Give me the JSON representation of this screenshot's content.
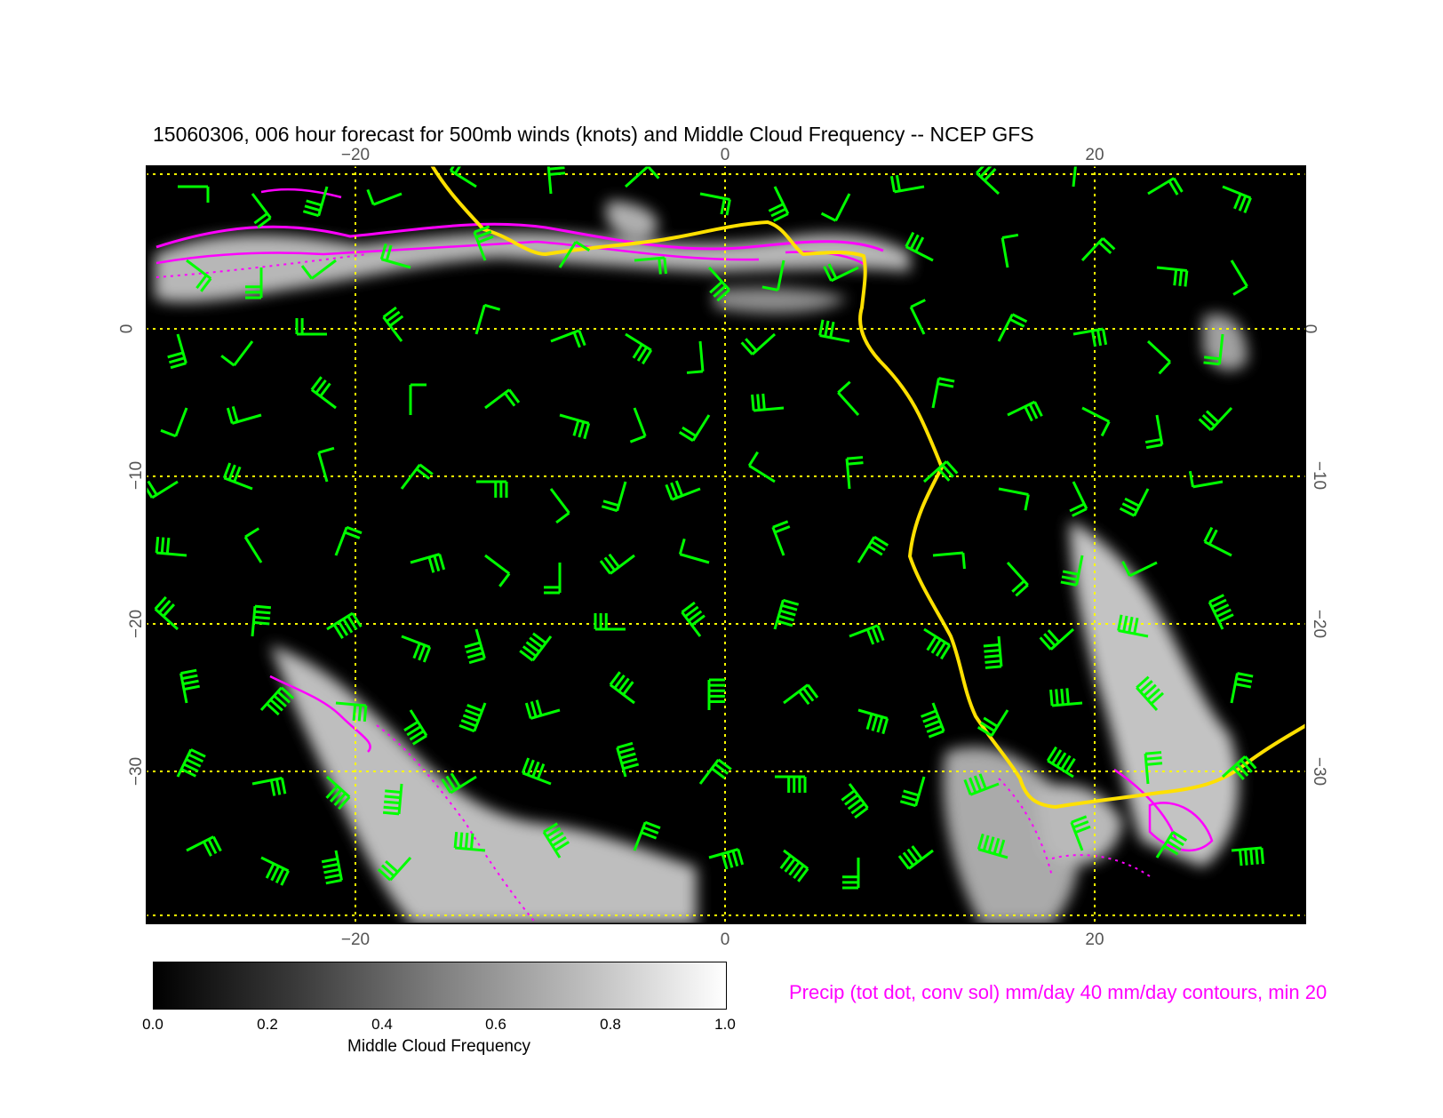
{
  "title": "15060306, 006 hour forecast for 500mb winds (knots) and Middle Cloud Frequency -- NCEP GFS",
  "map": {
    "lon_range": [
      -31,
      31
    ],
    "lat_range": [
      -40,
      11
    ],
    "grid_lons": [
      -20,
      0,
      20
    ],
    "grid_lats": [
      0,
      -10,
      -20,
      -30
    ],
    "lon_tick_labels": [
      "−20",
      "0",
      "20"
    ],
    "lat_tick_labels": [
      "0",
      "−10",
      "−20",
      "−30"
    ],
    "colors": {
      "background": "#000000",
      "grid": "#ffff00",
      "barbs": "#00ff00",
      "coastline": "#ffe000",
      "precip": "#ff00ff",
      "cloud": "#ffffff"
    }
  },
  "colorbar": {
    "label": "Middle Cloud Frequency",
    "ticks": [
      "0.0",
      "0.2",
      "0.4",
      "0.6",
      "0.8",
      "1.0"
    ],
    "range": [
      0.0,
      1.0
    ]
  },
  "precip_note": "Precip (tot dot, conv sol) mm/day 40 mm/day contours, min 20"
}
